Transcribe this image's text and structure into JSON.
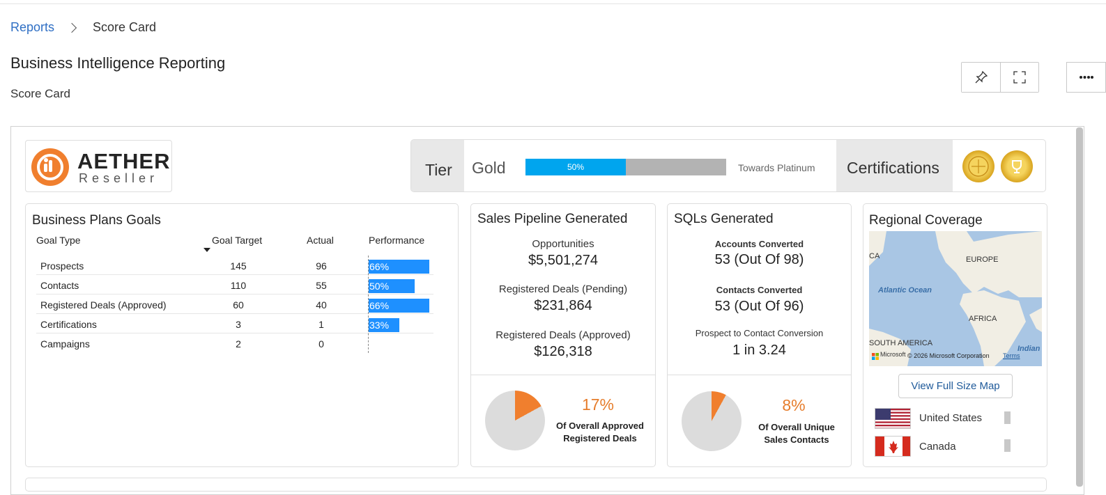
{
  "breadcrumb": {
    "parent": "Reports",
    "current": "Score Card"
  },
  "page": {
    "title": "Business Intelligence Reporting",
    "subtitle": "Score Card"
  },
  "toolbar": {
    "pin_icon": "pin-icon",
    "fullscreen_icon": "fullscreen-icon",
    "more_icon": "more-icon"
  },
  "logo": {
    "name": "AETHER",
    "tagline": "Reseller"
  },
  "tier": {
    "label": "Tier",
    "value": "Gold",
    "progress_label": "50%",
    "progress": 0.5,
    "towards": "Towards Platinum",
    "certifications_label": "Certifications"
  },
  "goals": {
    "title": "Business Plans Goals",
    "columns": [
      "Goal Type",
      "Goal Target",
      "Actual",
      "Performance"
    ],
    "rows": [
      {
        "type": "Prospects",
        "target": "145",
        "actual": "96",
        "performance": "66%",
        "perf_value": 0.66
      },
      {
        "type": "Contacts",
        "target": "110",
        "actual": "55",
        "performance": "50%",
        "perf_value": 0.5
      },
      {
        "type": "Registered Deals (Approved)",
        "target": "60",
        "actual": "40",
        "performance": "66%",
        "perf_value": 0.66
      },
      {
        "type": "Certifications",
        "target": "3",
        "actual": "1",
        "performance": "33%",
        "perf_value": 0.33
      },
      {
        "type": "Campaigns",
        "target": "2",
        "actual": "0",
        "performance": "",
        "perf_value": 0
      }
    ]
  },
  "pipeline": {
    "title": "Sales Pipeline Generated",
    "opportunities_label": "Opportunities",
    "opportunities_value": "$5,501,274",
    "pending_label": "Registered Deals (Pending)",
    "pending_value": "$231,864",
    "approved_label": "Registered Deals (Approved)",
    "approved_value": "$126,318",
    "pct": "17%",
    "pct_value": 0.17,
    "pct_desc_line1": "Of Overall Approved",
    "pct_desc_line2": "Registered Deals"
  },
  "sqls": {
    "title": "SQLs Generated",
    "accounts_label": "Accounts Converted",
    "accounts_value": "53 (Out Of 98)",
    "contacts_label": "Contacts Converted",
    "contacts_value": "53 (Out Of 96)",
    "conversion_label": "Prospect to Contact Conversion",
    "conversion_value": "1 in 3.24",
    "pct": "8%",
    "pct_value": 0.08,
    "pct_desc_line1": "Of Overall Unique",
    "pct_desc_line2": "Sales Contacts"
  },
  "regional": {
    "title": "Regional Coverage",
    "map_labels": {
      "europe": "EUROPE",
      "atlantic": "Atlantic Ocean",
      "africa": "AFRICA",
      "south_america": "SOUTH AMERICA",
      "indian": "Indian",
      "ca": "CA",
      "copyright": "© 2026 Microsoft Corporation",
      "terms": "Terms",
      "brand": "Microsoft"
    },
    "map_button": "View Full Size Map",
    "countries": [
      {
        "name": "United States",
        "flag": "us-flag-icon"
      },
      {
        "name": "Canada",
        "flag": "canada-flag-icon"
      }
    ]
  },
  "colors": {
    "accent_blue": "#00a5ee",
    "bar_blue": "#1e90ff",
    "orange": "#f07f2e",
    "link": "#2f6fc4"
  }
}
